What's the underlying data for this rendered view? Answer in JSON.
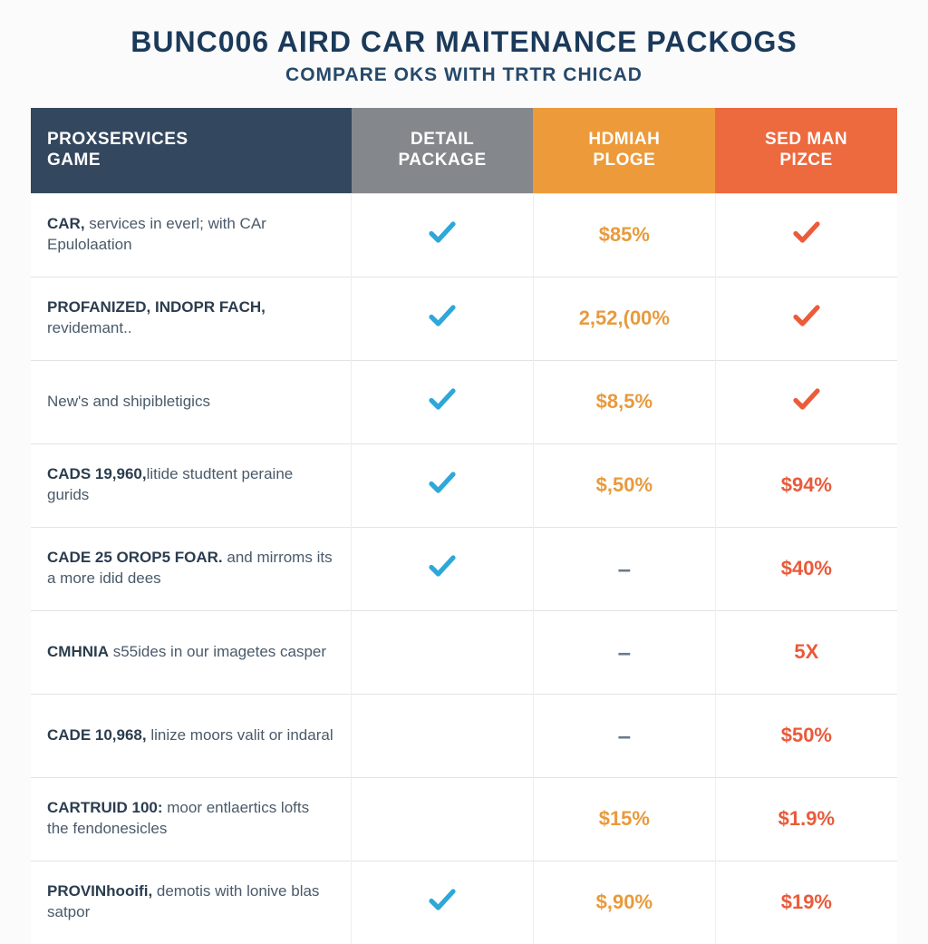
{
  "header": {
    "title": "BUNC006 AIRD CAR MAITENANCE PACKOGS",
    "subtitle": "COMPARE OKS WITH TRTR CHICAD"
  },
  "styling": {
    "page_bg": "#fbfbfb",
    "table_bg": "#ffffff",
    "row_border": "#e3e3e3",
    "title_color": "#1b3a5a",
    "subtitle_color": "#26496b",
    "feature_primary_color": "#2b3d4f",
    "feature_secondary_color": "#4a5a6a",
    "check_blue": "#2ea7d9",
    "check_red": "#ec5b3a",
    "text_orange": "#e89a3c",
    "text_red": "#ea5a3a",
    "dash_color": "#6b7a89",
    "header_colors": [
      "#33475f",
      "#84888d",
      "#ed9a3a",
      "#ed693e"
    ]
  },
  "columns": [
    {
      "line1": "PROXSERVICES",
      "line2": "GAME"
    },
    {
      "line1": "DETAIL",
      "line2": "PACKAGE"
    },
    {
      "line1": "HDMIAH",
      "line2": "PLOGE"
    },
    {
      "line1": "SED MAN",
      "line2": "PIZCE"
    }
  ],
  "rows": [
    {
      "feature_primary": "CAR,",
      "feature_secondary": " services in everl; with CAr Epulolaation",
      "cells": [
        {
          "kind": "check",
          "color": "#2ea7d9"
        },
        {
          "kind": "text",
          "value": "$85%",
          "color": "#e89a3c"
        },
        {
          "kind": "check",
          "color": "#ec5b3a"
        }
      ]
    },
    {
      "feature_primary": "PROFANIZED, INDOPR FACH,",
      "feature_secondary": " revidemant..",
      "cells": [
        {
          "kind": "check",
          "color": "#2ea7d9"
        },
        {
          "kind": "text",
          "value": "2,52,(00%",
          "color": "#e89a3c"
        },
        {
          "kind": "check",
          "color": "#ec5b3a"
        }
      ]
    },
    {
      "feature_primary": "",
      "feature_secondary": "New's and shipibletigics",
      "cells": [
        {
          "kind": "check",
          "color": "#2ea7d9"
        },
        {
          "kind": "text",
          "value": "$8,5%",
          "color": "#e89a3c"
        },
        {
          "kind": "check",
          "color": "#ec5b3a"
        }
      ]
    },
    {
      "feature_primary": "CADS 19,960,",
      "feature_secondary": "litide studtent peraine gurids",
      "cells": [
        {
          "kind": "check",
          "color": "#2ea7d9"
        },
        {
          "kind": "text",
          "value": "$,50%",
          "color": "#e89a3c"
        },
        {
          "kind": "text",
          "value": "$94%",
          "color": "#ea5a3a"
        }
      ]
    },
    {
      "feature_primary": "CADE 25 OROP5 FOAR.",
      "feature_secondary": " and mirroms its a more idid dees",
      "cells": [
        {
          "kind": "check",
          "color": "#2ea7d9"
        },
        {
          "kind": "dash"
        },
        {
          "kind": "text",
          "value": "$40%",
          "color": "#ea5a3a"
        }
      ]
    },
    {
      "feature_primary": "CMHNIA",
      "feature_secondary": " s55ides in our imagetes casper",
      "cells": [
        {
          "kind": "empty"
        },
        {
          "kind": "dash"
        },
        {
          "kind": "text",
          "value": "5X",
          "color": "#ea5a3a"
        }
      ]
    },
    {
      "feature_primary": "CADE 10,968,",
      "feature_secondary": " linize moors valit or indaral",
      "cells": [
        {
          "kind": "empty"
        },
        {
          "kind": "dash"
        },
        {
          "kind": "text",
          "value": "$50%",
          "color": "#ea5a3a"
        }
      ]
    },
    {
      "feature_primary": "CARTRUID 100:",
      "feature_secondary": " moor entlaertics lofts the fendonesicles",
      "cells": [
        {
          "kind": "empty"
        },
        {
          "kind": "text",
          "value": "$15%",
          "color": "#e89a3c"
        },
        {
          "kind": "text",
          "value": "$1.9%",
          "color": "#ea5a3a"
        }
      ]
    },
    {
      "feature_primary": "PROVINhooifi,",
      "feature_secondary": " demotis with lonive blas satpor",
      "cells": [
        {
          "kind": "check",
          "color": "#2ea7d9"
        },
        {
          "kind": "text",
          "value": "$,90%",
          "color": "#e89a3c"
        },
        {
          "kind": "text",
          "value": "$19%",
          "color": "#ea5a3a"
        }
      ]
    }
  ]
}
